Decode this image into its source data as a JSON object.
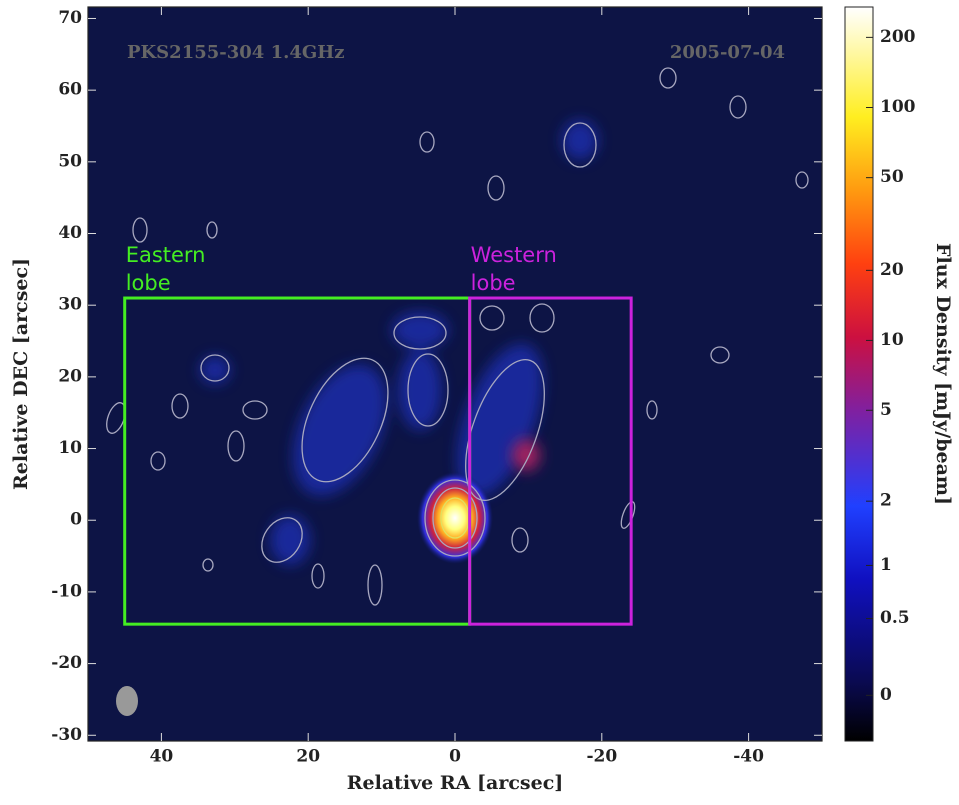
{
  "chart_data": {
    "type": "image",
    "annotations": [
      "PKS2155-304 1.4GHz",
      "2005-07-04"
    ],
    "x_label": "Relative RA [arcsec]",
    "y_label": "Relative DEC [arcsec]",
    "xlim": [
      50,
      -50
    ],
    "ylim": [
      -30.8,
      71.6
    ],
    "xticks": [
      40,
      20,
      0,
      -20,
      -40
    ],
    "yticks": [
      -30,
      -20,
      -10,
      0,
      10,
      20,
      30,
      40,
      50,
      60,
      70
    ],
    "colorbar": {
      "label": "Flux Density [mJy/beam]",
      "scale": "asinh",
      "lim": [
        -0.28,
        270
      ],
      "ticks": [
        0,
        0.5,
        1,
        2,
        5,
        10,
        20,
        50,
        100,
        200
      ]
    },
    "regions": [
      {
        "label": [
          "Eastern",
          "lobe"
        ],
        "color": "#44ee22",
        "x": [
          45,
          -2
        ],
        "y": [
          -14.5,
          31
        ]
      },
      {
        "label": [
          "Western",
          "lobe"
        ],
        "color": "#cc22dd",
        "x": [
          -2,
          -24
        ],
        "y": [
          -14.5,
          31
        ]
      }
    ]
  }
}
